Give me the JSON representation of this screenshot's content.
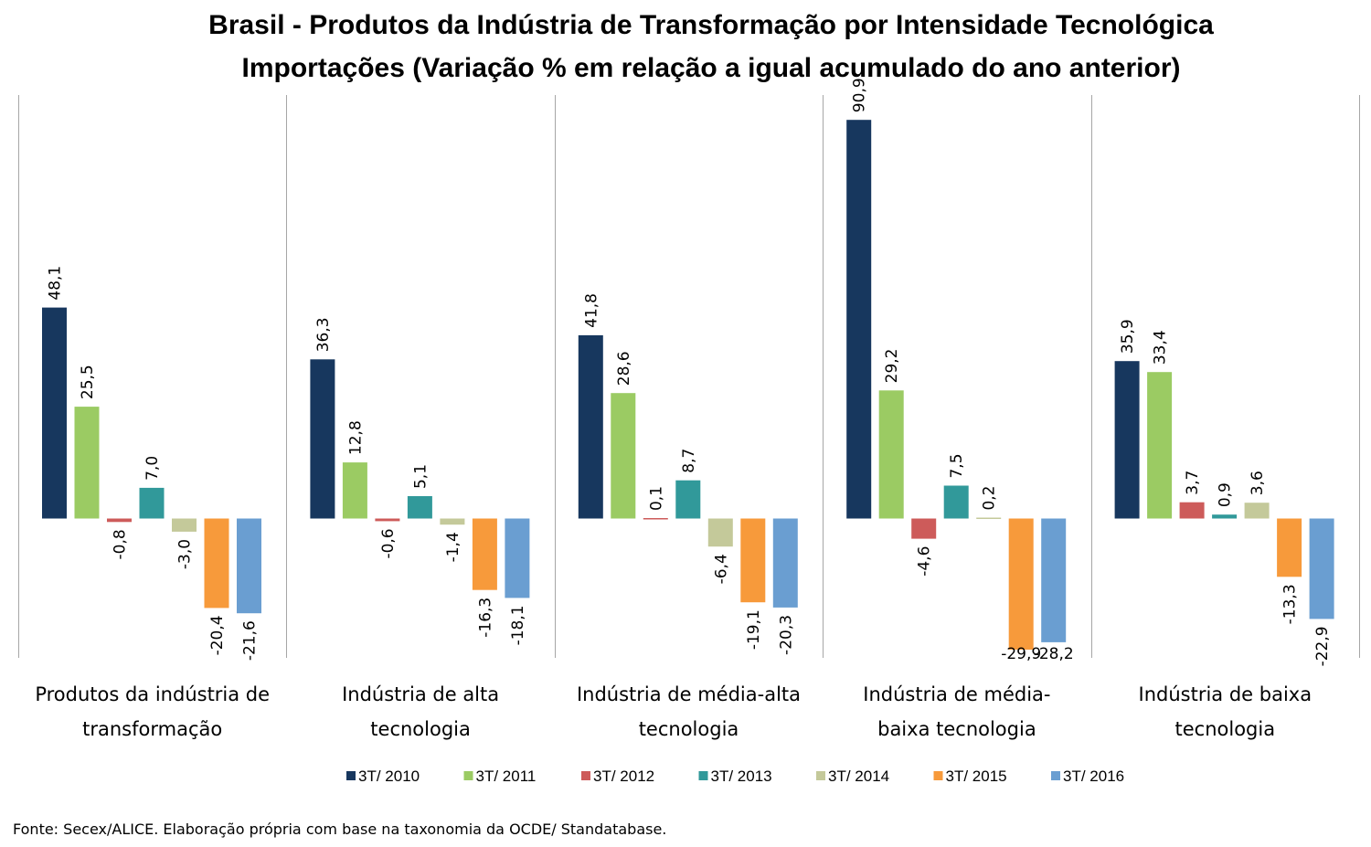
{
  "chart_data": {
    "type": "bar",
    "title_line1": "Brasil - Produtos da Indústria de Transformação por Intensidade Tecnológica",
    "title_line2": "Importações (Variação % em relação a igual acumulado do ano anterior)",
    "categories": [
      [
        "Produtos da indústria de",
        "transformação"
      ],
      [
        "Indústria de alta",
        "tecnologia"
      ],
      [
        "Indústria de média-alta",
        "tecnologia"
      ],
      [
        "Indústria de média-",
        "baixa tecnologia"
      ],
      [
        "Indústria de baixa",
        "tecnologia"
      ]
    ],
    "series": [
      {
        "name": "3T/ 2010",
        "color": "#17375E",
        "values": [
          48.1,
          36.3,
          41.8,
          90.9,
          35.9
        ],
        "labels": [
          "48,1",
          "36,3",
          "41,8",
          "90,9",
          "35,9"
        ]
      },
      {
        "name": "3T/ 2011",
        "color": "#9BCB63",
        "values": [
          25.5,
          12.8,
          28.6,
          29.2,
          33.4
        ],
        "labels": [
          "25,5",
          "12,8",
          "28,6",
          "29,2",
          "33,4"
        ]
      },
      {
        "name": "3T/ 2012",
        "color": "#CD5B5A",
        "values": [
          -0.8,
          -0.6,
          0.1,
          -4.6,
          3.7
        ],
        "labels": [
          "-0,8",
          "-0,6",
          "0,1",
          "-4,6",
          "3,7"
        ]
      },
      {
        "name": "3T/ 2013",
        "color": "#31999A",
        "values": [
          7.0,
          5.1,
          8.7,
          7.5,
          0.9
        ],
        "labels": [
          "7,0",
          "5,1",
          "8,7",
          "7,5",
          "0,9"
        ]
      },
      {
        "name": "3T/ 2014",
        "color": "#C4C99A",
        "values": [
          -3.0,
          -1.4,
          -6.4,
          0.2,
          3.6
        ],
        "labels": [
          "-3,0",
          "-1,4",
          "-6,4",
          "0,2",
          "3,6"
        ]
      },
      {
        "name": "3T/ 2015",
        "color": "#F79A3B",
        "values": [
          -20.4,
          -16.3,
          -19.1,
          -29.9,
          -13.3
        ],
        "labels": [
          "-20,4",
          "-16,3",
          "-19,1",
          "-29,9",
          "-13,3"
        ]
      },
      {
        "name": "3T/ 2016",
        "color": "#6A9ED1",
        "values": [
          -21.6,
          -18.1,
          -20.3,
          -28.2,
          -22.9
        ],
        "labels": [
          "-21,6",
          "-18,1",
          "-20,3",
          "-28,2",
          "-22,9"
        ]
      }
    ],
    "ylim": [
      -31.6,
      95
    ],
    "legend_position": "bottom",
    "grid": false
  },
  "source": "Fonte: Secex/ALICE. Elaboração própria com base na taxonomia da OCDE/ Standatabase."
}
